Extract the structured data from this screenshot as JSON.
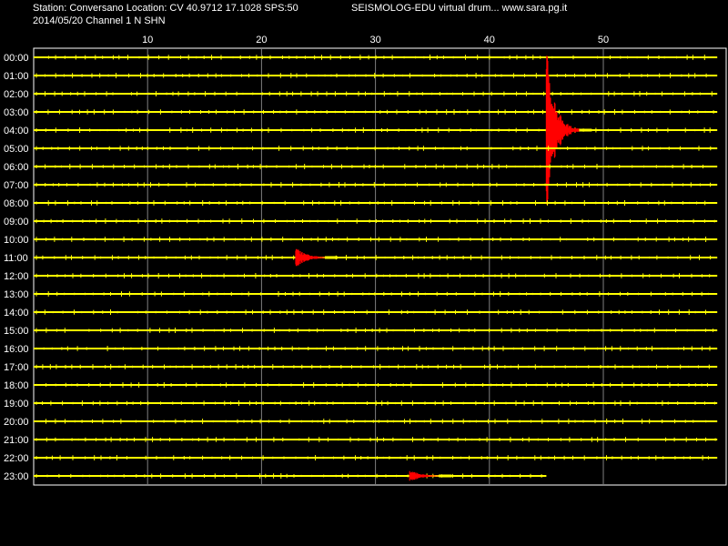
{
  "header": {
    "station_line": "Station: Conversano Location: CV 40.9712 17.1028 SPS:50",
    "date_line": "2014/05/20  Channel 1 N SHN",
    "credit": "SEISMOLOG-EDU virtual drum... www.sara.pg.it"
  },
  "colors": {
    "background": "#000000",
    "frame": "#ffffff",
    "grid": "#7f7f7f",
    "trace": "#ffff00",
    "event": "#ff0000",
    "text": "#ffffff"
  },
  "chart_data": {
    "type": "line",
    "title": "",
    "xlabel": "",
    "ylabel": "",
    "x_ticks": [
      10,
      20,
      30,
      40,
      50
    ],
    "xlim": [
      0,
      60
    ],
    "grid": true,
    "row_labels": [
      "00:00",
      "01:00",
      "02:00",
      "03:00",
      "04:00",
      "05:00",
      "06:00",
      "07:00",
      "08:00",
      "09:00",
      "10:00",
      "11:00",
      "12:00",
      "13:00",
      "14:00",
      "15:00",
      "16:00",
      "17:00",
      "18:00",
      "19:00",
      "20:00",
      "21:00",
      "22:00",
      "23:00"
    ],
    "last_row_end_minute": 45,
    "events": [
      {
        "row": "04:00",
        "minute": 45,
        "color": "red",
        "peak": "very large"
      },
      {
        "row": "11:00",
        "minute": 23,
        "color": "red",
        "peak": "moderate"
      },
      {
        "row": "23:00",
        "minute": 33,
        "color": "red",
        "peak": "small"
      }
    ]
  }
}
